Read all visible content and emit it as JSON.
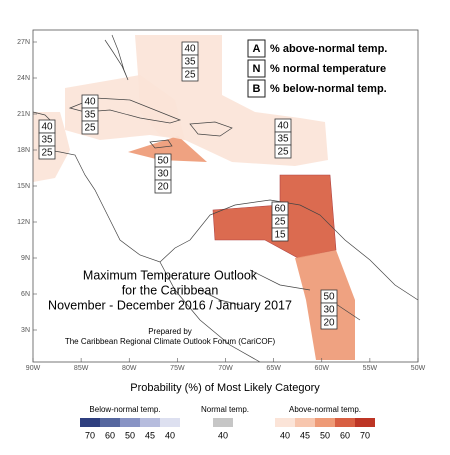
{
  "map": {
    "lat_ticks": [
      {
        "value": 27,
        "label": "27N"
      },
      {
        "value": 24,
        "label": "24N"
      },
      {
        "value": 21,
        "label": "21N"
      },
      {
        "value": 18,
        "label": "18N"
      },
      {
        "value": 15,
        "label": "15N"
      },
      {
        "value": 12,
        "label": "12N"
      },
      {
        "value": 9,
        "label": "9N"
      },
      {
        "value": 6,
        "label": "6N"
      },
      {
        "value": 3,
        "label": "3N"
      }
    ],
    "lon_ticks": [
      {
        "value": 90,
        "label": "90W"
      },
      {
        "value": 85,
        "label": "85W"
      },
      {
        "value": 80,
        "label": "80W"
      },
      {
        "value": 75,
        "label": "75W"
      },
      {
        "value": 70,
        "label": "70W"
      },
      {
        "value": 65,
        "label": "65W"
      },
      {
        "value": 60,
        "label": "60W"
      },
      {
        "value": 55,
        "label": "55W"
      },
      {
        "value": 50,
        "label": "50W"
      }
    ],
    "key": [
      {
        "letter": "A",
        "text": "% above-normal temp."
      },
      {
        "letter": "N",
        "text": "% normal temperature"
      },
      {
        "letter": "B",
        "text": "% below-normal temp."
      }
    ],
    "regions": [
      {
        "above": 40,
        "normal": 35,
        "below": 25
      },
      {
        "above": 40,
        "normal": 35,
        "below": 25
      },
      {
        "above": 40,
        "normal": 35,
        "below": 25
      },
      {
        "above": 50,
        "normal": 30,
        "below": 20
      },
      {
        "above": 40,
        "normal": 35,
        "below": 25
      },
      {
        "above": 60,
        "normal": 25,
        "below": 15
      },
      {
        "above": 50,
        "normal": 30,
        "below": 20
      }
    ],
    "title_lines": [
      "Maximum Temperature Outlook",
      "for the Caribbean",
      "November - December 2016 / January 2017"
    ],
    "credit_lines": [
      "Prepared by",
      "The Caribbean Regional Climate Outlook Forum (CariCOF)"
    ]
  },
  "legend": {
    "title": "Probability (%) of Most Likely Category",
    "below": {
      "label": "Below-normal temp.",
      "steps": [
        {
          "value": 70,
          "color": "#2f3f7f"
        },
        {
          "value": 60,
          "color": "#56679f"
        },
        {
          "value": 50,
          "color": "#8893c4"
        },
        {
          "value": 45,
          "color": "#b6bcdd"
        },
        {
          "value": 40,
          "color": "#dde0f0"
        }
      ]
    },
    "normal": {
      "label": "Normal temp.",
      "steps": [
        {
          "value": 40,
          "color": "#c6c6c6"
        }
      ]
    },
    "above": {
      "label": "Above-normal temp.",
      "steps": [
        {
          "value": 40,
          "color": "#fbe4d8"
        },
        {
          "value": 45,
          "color": "#f7c6ae"
        },
        {
          "value": 50,
          "color": "#ee9a76"
        },
        {
          "value": 60,
          "color": "#d85f42"
        },
        {
          "value": 70,
          "color": "#bd3525"
        }
      ]
    }
  }
}
